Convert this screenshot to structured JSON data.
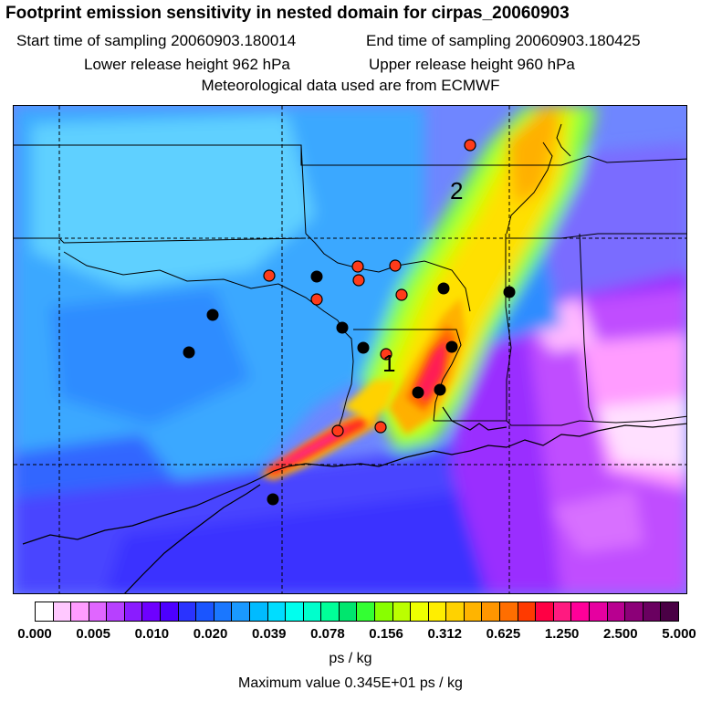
{
  "title": "Footprint emission sensitivity in nested domain for cirpas_20060903",
  "start_time": "Start time of sampling 20060903.180014",
  "end_time": "End time of sampling 20060903.180425",
  "lower_height": "Lower release height  962 hPa",
  "upper_height": "Upper release height  960 hPa",
  "met_data": "Meteorological data used are from ECMWF",
  "map": {
    "region_labels": [
      "1",
      "2"
    ],
    "colors": {
      "background": "#7f7fff",
      "sea": "#5a4dff",
      "land_cyan": "#33b8ff",
      "marker_red": "#ff3b1a",
      "marker_black": "#000000"
    }
  },
  "colorbar": {
    "ticks": [
      "0.000",
      "0.005",
      "0.010",
      "0.020",
      "0.039",
      "0.078",
      "0.156",
      "0.312",
      "0.625",
      "1.250",
      "2.500",
      "5.000"
    ],
    "colors": [
      "#ffffff",
      "#ffc8ff",
      "#ff9cff",
      "#e066ff",
      "#b740ff",
      "#8a1cff",
      "#6e00ff",
      "#4d00ff",
      "#2a33ff",
      "#1a55ff",
      "#1a77ff",
      "#1a99ff",
      "#00bbff",
      "#00ddff",
      "#00ffee",
      "#00ffcc",
      "#00ff99",
      "#00e66e",
      "#33ff33",
      "#88ff00",
      "#bbff00",
      "#eeff00",
      "#ffee00",
      "#ffd200",
      "#ffb400",
      "#ff9600",
      "#ff6e00",
      "#ff3a00",
      "#ff0044",
      "#ff1a80",
      "#ff0099",
      "#e600a0",
      "#b80090",
      "#8c0078",
      "#6a0060",
      "#4a0045"
    ],
    "units": "ps / kg",
    "maximum": "Maximum value  0.345E+01 ps / kg"
  }
}
